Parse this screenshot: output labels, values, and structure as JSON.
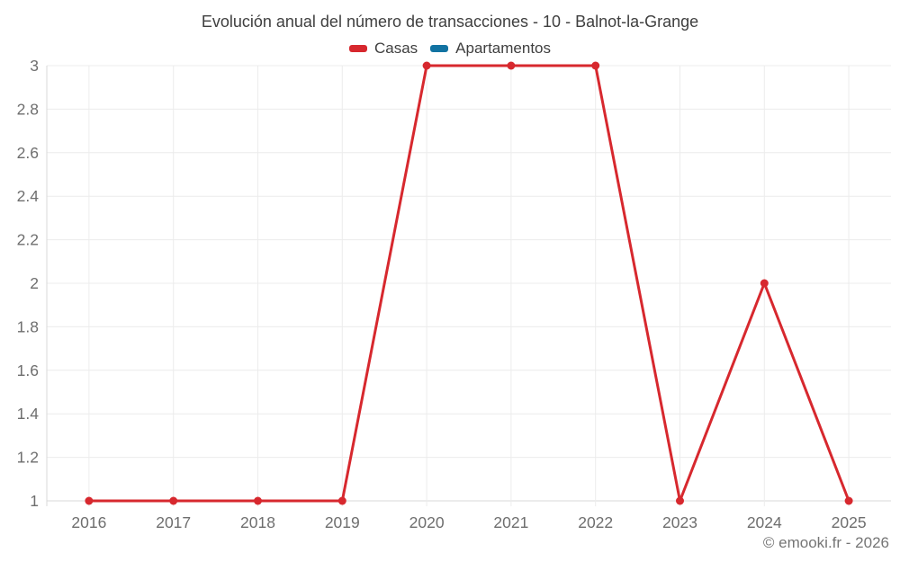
{
  "header": {
    "title": "Evolución anual del número de transacciones - 10 - Balnot-la-Grange"
  },
  "legend": {
    "items": [
      {
        "label": "Casas",
        "color": "#d7282e"
      },
      {
        "label": "Apartamentos",
        "color": "#1273a2"
      }
    ]
  },
  "watermark": "© emooki.fr - 2026",
  "colors": {
    "background": "#ffffff",
    "grid": "#ececec",
    "axis": "#d9d9d9",
    "tick_label": "#6e6e6e",
    "title_text": "#3f3f3f",
    "legend_text": "#3f3f3f",
    "watermark_text": "#757575"
  },
  "chart_data": {
    "type": "line",
    "title": "Evolución anual del número de transacciones - 10 - Balnot-la-Grange",
    "categories": [
      "2016",
      "2017",
      "2018",
      "2019",
      "2020",
      "2021",
      "2022",
      "2023",
      "2024",
      "2025"
    ],
    "series": [
      {
        "name": "Casas",
        "color": "#d7282e",
        "values": [
          1,
          1,
          1,
          1,
          3,
          3,
          3,
          1,
          2,
          1
        ]
      },
      {
        "name": "Apartamentos",
        "color": "#1273a2",
        "values": []
      }
    ],
    "xlabel": "",
    "ylabel": "",
    "ylim": [
      1,
      3
    ],
    "y_tick_step": 0.2,
    "y_tick_labels": [
      "1",
      "1.2",
      "1.4",
      "1.6",
      "1.8",
      "2",
      "2.2",
      "2.4",
      "2.6",
      "2.8",
      "3"
    ],
    "grid": true,
    "legend_position": "top",
    "marker": "circle"
  }
}
